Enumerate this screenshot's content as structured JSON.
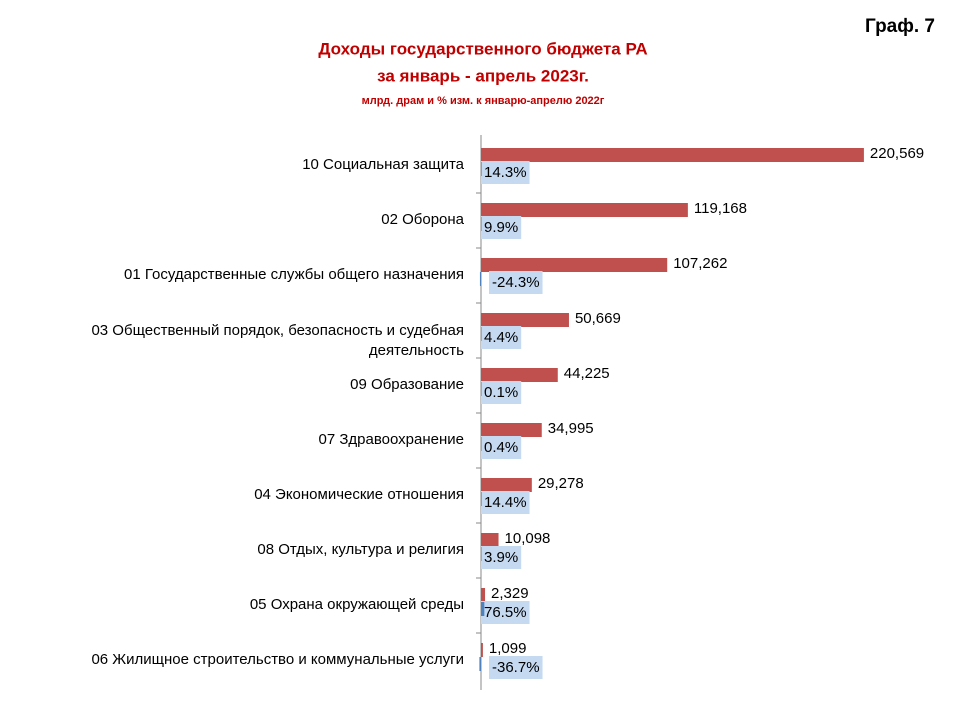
{
  "chart_data": {
    "type": "bar",
    "orientation": "horizontal",
    "label": "Граф. 7",
    "title": [
      "Доходы государственного бюджета РА",
      "за январь - апрель 2023г."
    ],
    "subtitle": "млрд. драм и % изм. к январю-апрелю 2022г",
    "categories": [
      "10 Социальная защита",
      "02 Оборона",
      "01 Государственные службы общего назначения",
      "03 Общественный порядок, безопасность и судебная деятельность",
      "09 Образование",
      "07 Здравоохранение",
      "04 Экономические отношения",
      "08 Отдых, культура и религия",
      "05 Охрана окружающей среды",
      "06 Жилищное строительство и  коммунальные услуги"
    ],
    "series": [
      {
        "color": "#c0504d",
        "values": [
          220.569,
          119.168,
          107.262,
          50.669,
          44.225,
          34.995,
          29.278,
          10.098,
          2.329,
          1.099
        ],
        "value_labels": [
          "220,569",
          "119,168",
          "107,262",
          "50,669",
          "44,225",
          "34,995",
          "29,278",
          "10,098",
          "2,329",
          "1,099"
        ]
      },
      {
        "color": "#4f81bd",
        "label_background": "#c5d9f1",
        "axis": "x2",
        "values": [
          14.3,
          9.9,
          -24.3,
          4.4,
          0.1,
          0.4,
          14.4,
          3.9,
          76.5,
          -36.7
        ],
        "value_labels": [
          "14.3%",
          "9.9%",
          "-24.3%",
          "4.4%",
          "0.1%",
          "0.4%",
          "14.4%",
          "3.9%",
          "76.5%",
          "-36.7%"
        ]
      }
    ],
    "xlim": [
      0,
      250
    ],
    "x2lim": [
      -5000,
      5000
    ]
  }
}
